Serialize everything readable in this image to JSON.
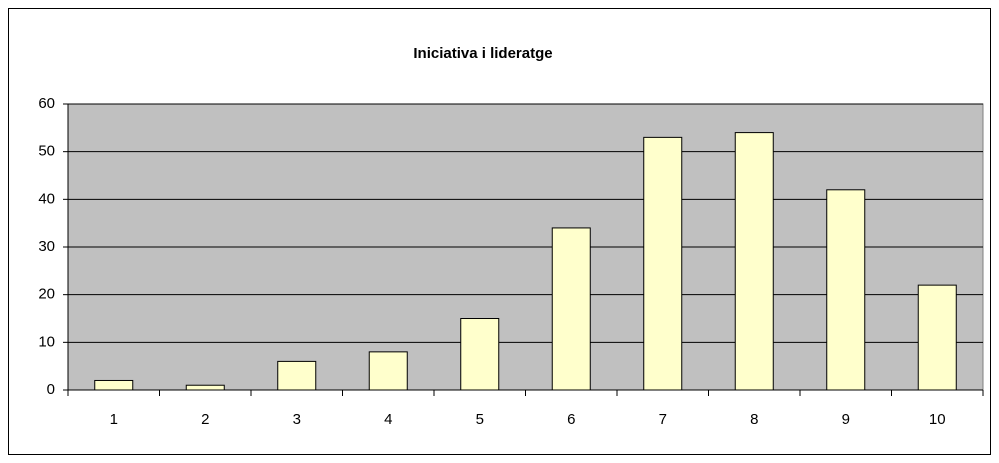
{
  "chart_data": {
    "type": "bar",
    "title": "Iniciativa i lideratge",
    "categories": [
      "1",
      "2",
      "3",
      "4",
      "5",
      "6",
      "7",
      "8",
      "9",
      "10"
    ],
    "values": [
      2,
      1,
      6,
      8,
      15,
      34,
      53,
      54,
      42,
      22
    ],
    "color": "#ffffcc",
    "plot_background": "#c0c0c0",
    "ylim": [
      0,
      60
    ],
    "yticks": [
      0,
      10,
      20,
      30,
      40,
      50,
      60
    ],
    "grid": true
  }
}
